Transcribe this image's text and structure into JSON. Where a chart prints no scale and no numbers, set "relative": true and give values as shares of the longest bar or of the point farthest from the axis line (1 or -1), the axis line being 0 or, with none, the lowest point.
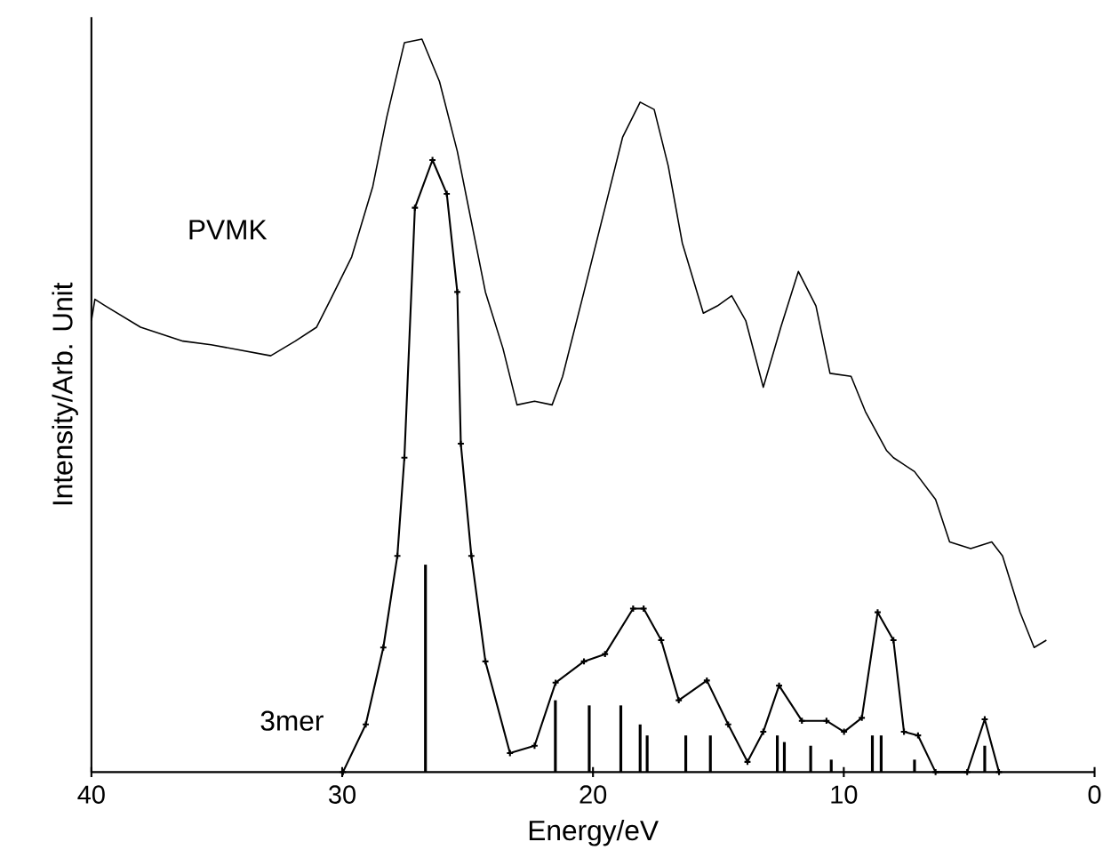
{
  "chart_data": {
    "type": "line",
    "xlabel": "Energy/eV",
    "ylabel": "Intensity/Arb. Unit",
    "relative": true,
    "xlim": [
      40,
      0
    ],
    "xticks": [
      40,
      30,
      20,
      10,
      0
    ],
    "series": [
      {
        "name": "PVMK",
        "color": "#000000",
        "marker": "none",
        "line_style": "solid",
        "x": [
          40.0,
          39.86,
          39.44,
          38.04,
          36.35,
          35.23,
          32.85,
          31.87,
          31.02,
          30.46,
          29.62,
          28.78,
          28.22,
          27.52,
          26.82,
          26.12,
          25.41,
          24.85,
          24.29,
          23.59,
          23.03,
          22.33,
          21.63,
          21.21,
          20.36,
          19.52,
          18.82,
          18.12,
          17.56,
          17.0,
          16.44,
          15.6,
          15.04,
          14.47,
          13.91,
          13.21,
          12.51,
          11.81,
          11.11,
          10.55,
          9.71,
          9.14,
          8.3,
          8.02,
          7.18,
          6.34,
          5.78,
          4.94,
          4.1,
          3.67,
          2.97,
          2.41,
          1.92
        ],
        "values": [
          0.616,
          0.645,
          0.636,
          0.607,
          0.588,
          0.583,
          0.568,
          0.588,
          0.607,
          0.645,
          0.703,
          0.799,
          0.894,
          0.995,
          1.0,
          0.942,
          0.847,
          0.751,
          0.655,
          0.578,
          0.501,
          0.506,
          0.501,
          0.54,
          0.655,
          0.77,
          0.866,
          0.914,
          0.904,
          0.827,
          0.722,
          0.626,
          0.636,
          0.65,
          0.616,
          0.525,
          0.607,
          0.683,
          0.636,
          0.544,
          0.54,
          0.492,
          0.439,
          0.429,
          0.41,
          0.372,
          0.314,
          0.305,
          0.314,
          0.295,
          0.218,
          0.17,
          0.18
        ]
      },
      {
        "name": "3mer",
        "color": "#000000",
        "marker": "cross",
        "line_style": "solid",
        "x": [
          29.97,
          29.06,
          28.36,
          27.8,
          27.52,
          27.1,
          26.4,
          25.83,
          25.41,
          25.27,
          24.85,
          24.29,
          23.31,
          22.33,
          21.49,
          20.36,
          19.52,
          18.4,
          17.98,
          17.28,
          16.58,
          15.46,
          14.61,
          13.84,
          13.21,
          12.58,
          11.67,
          10.69,
          9.99,
          9.28,
          8.65,
          8.02,
          7.6,
          7.04,
          6.34,
          5.08,
          4.38,
          3.81
        ],
        "values": [
          0.0,
          0.065,
          0.17,
          0.295,
          0.429,
          0.77,
          0.835,
          0.789,
          0.655,
          0.448,
          0.295,
          0.151,
          0.026,
          0.036,
          0.122,
          0.151,
          0.161,
          0.223,
          0.223,
          0.18,
          0.098,
          0.125,
          0.065,
          0.014,
          0.055,
          0.118,
          0.07,
          0.07,
          0.055,
          0.074,
          0.218,
          0.18,
          0.055,
          0.05,
          0.0,
          0.0,
          0.072,
          0.0
        ]
      },
      {
        "type": "bar",
        "color": "#000000",
        "x": [
          26.68,
          21.5,
          20.15,
          18.89,
          18.12,
          17.84,
          16.3,
          15.32,
          12.65,
          12.37,
          11.32,
          10.5,
          8.86,
          8.51,
          7.18,
          4.38
        ],
        "values": [
          0.283,
          0.098,
          0.091,
          0.091,
          0.065,
          0.05,
          0.05,
          0.05,
          0.05,
          0.041,
          0.036,
          0.017,
          0.05,
          0.05,
          0.017,
          0.036
        ]
      }
    ]
  }
}
